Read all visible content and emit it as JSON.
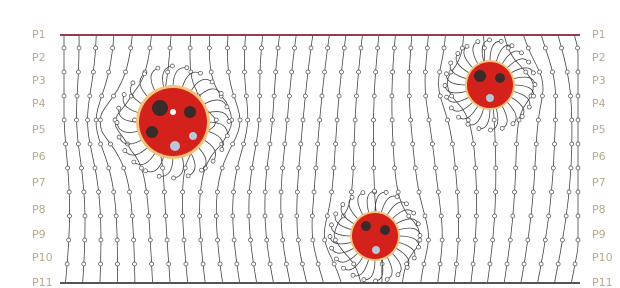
{
  "rows": {
    "left": [
      "P1",
      "P2",
      "P3",
      "P4",
      "P5",
      "P6",
      "P7",
      "P8",
      "P9",
      "P10",
      "P11"
    ],
    "right": [
      "P1",
      "P2",
      "P3",
      "P4",
      "P5",
      "P6",
      "P7",
      "P8",
      "P9",
      "P10",
      "P11"
    ]
  }
}
